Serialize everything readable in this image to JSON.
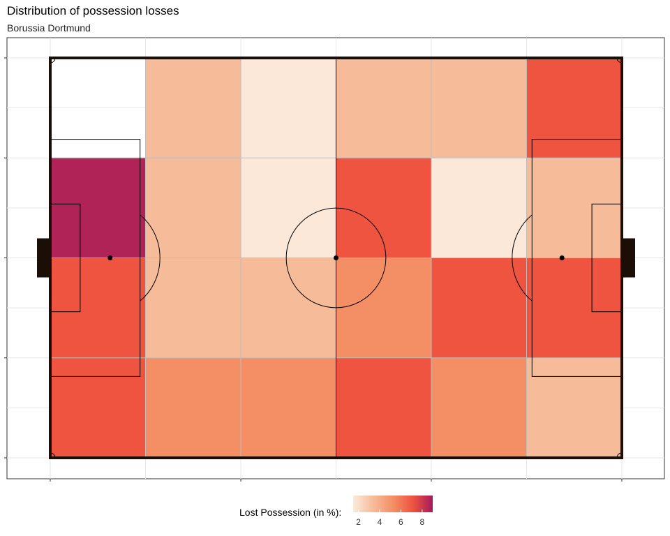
{
  "chart_data": {
    "type": "heatmap",
    "title": "Distribution of possession losses",
    "subtitle": "Borussia Dortmund",
    "xlabel": "",
    "ylabel": "",
    "grid": true,
    "columns": 6,
    "rows": 4,
    "values": [
      [
        null,
        3.2,
        1.6,
        3.2,
        3.2,
        6.4
      ],
      [
        8.6,
        3.2,
        1.6,
        6.4,
        1.6,
        3.2
      ],
      [
        6.4,
        3.2,
        3.2,
        5.0,
        6.4,
        6.4
      ],
      [
        6.4,
        5.0,
        5.0,
        6.4,
        5.0,
        3.2
      ]
    ],
    "legend": {
      "title": "Lost Possession (in %):",
      "ticks": [
        2,
        4,
        6,
        8
      ],
      "min": 1.5,
      "max": 9.0,
      "position": "bottom"
    },
    "colors": {
      "low": "#FBEBDC",
      "mid1": "#F6BC99",
      "mid2": "#F48E65",
      "mid3": "#EE5440",
      "high": "#A41A5B",
      "pitch_lines": "#000000",
      "border": "#1A0E06",
      "grid": "#E6E6E6"
    }
  }
}
